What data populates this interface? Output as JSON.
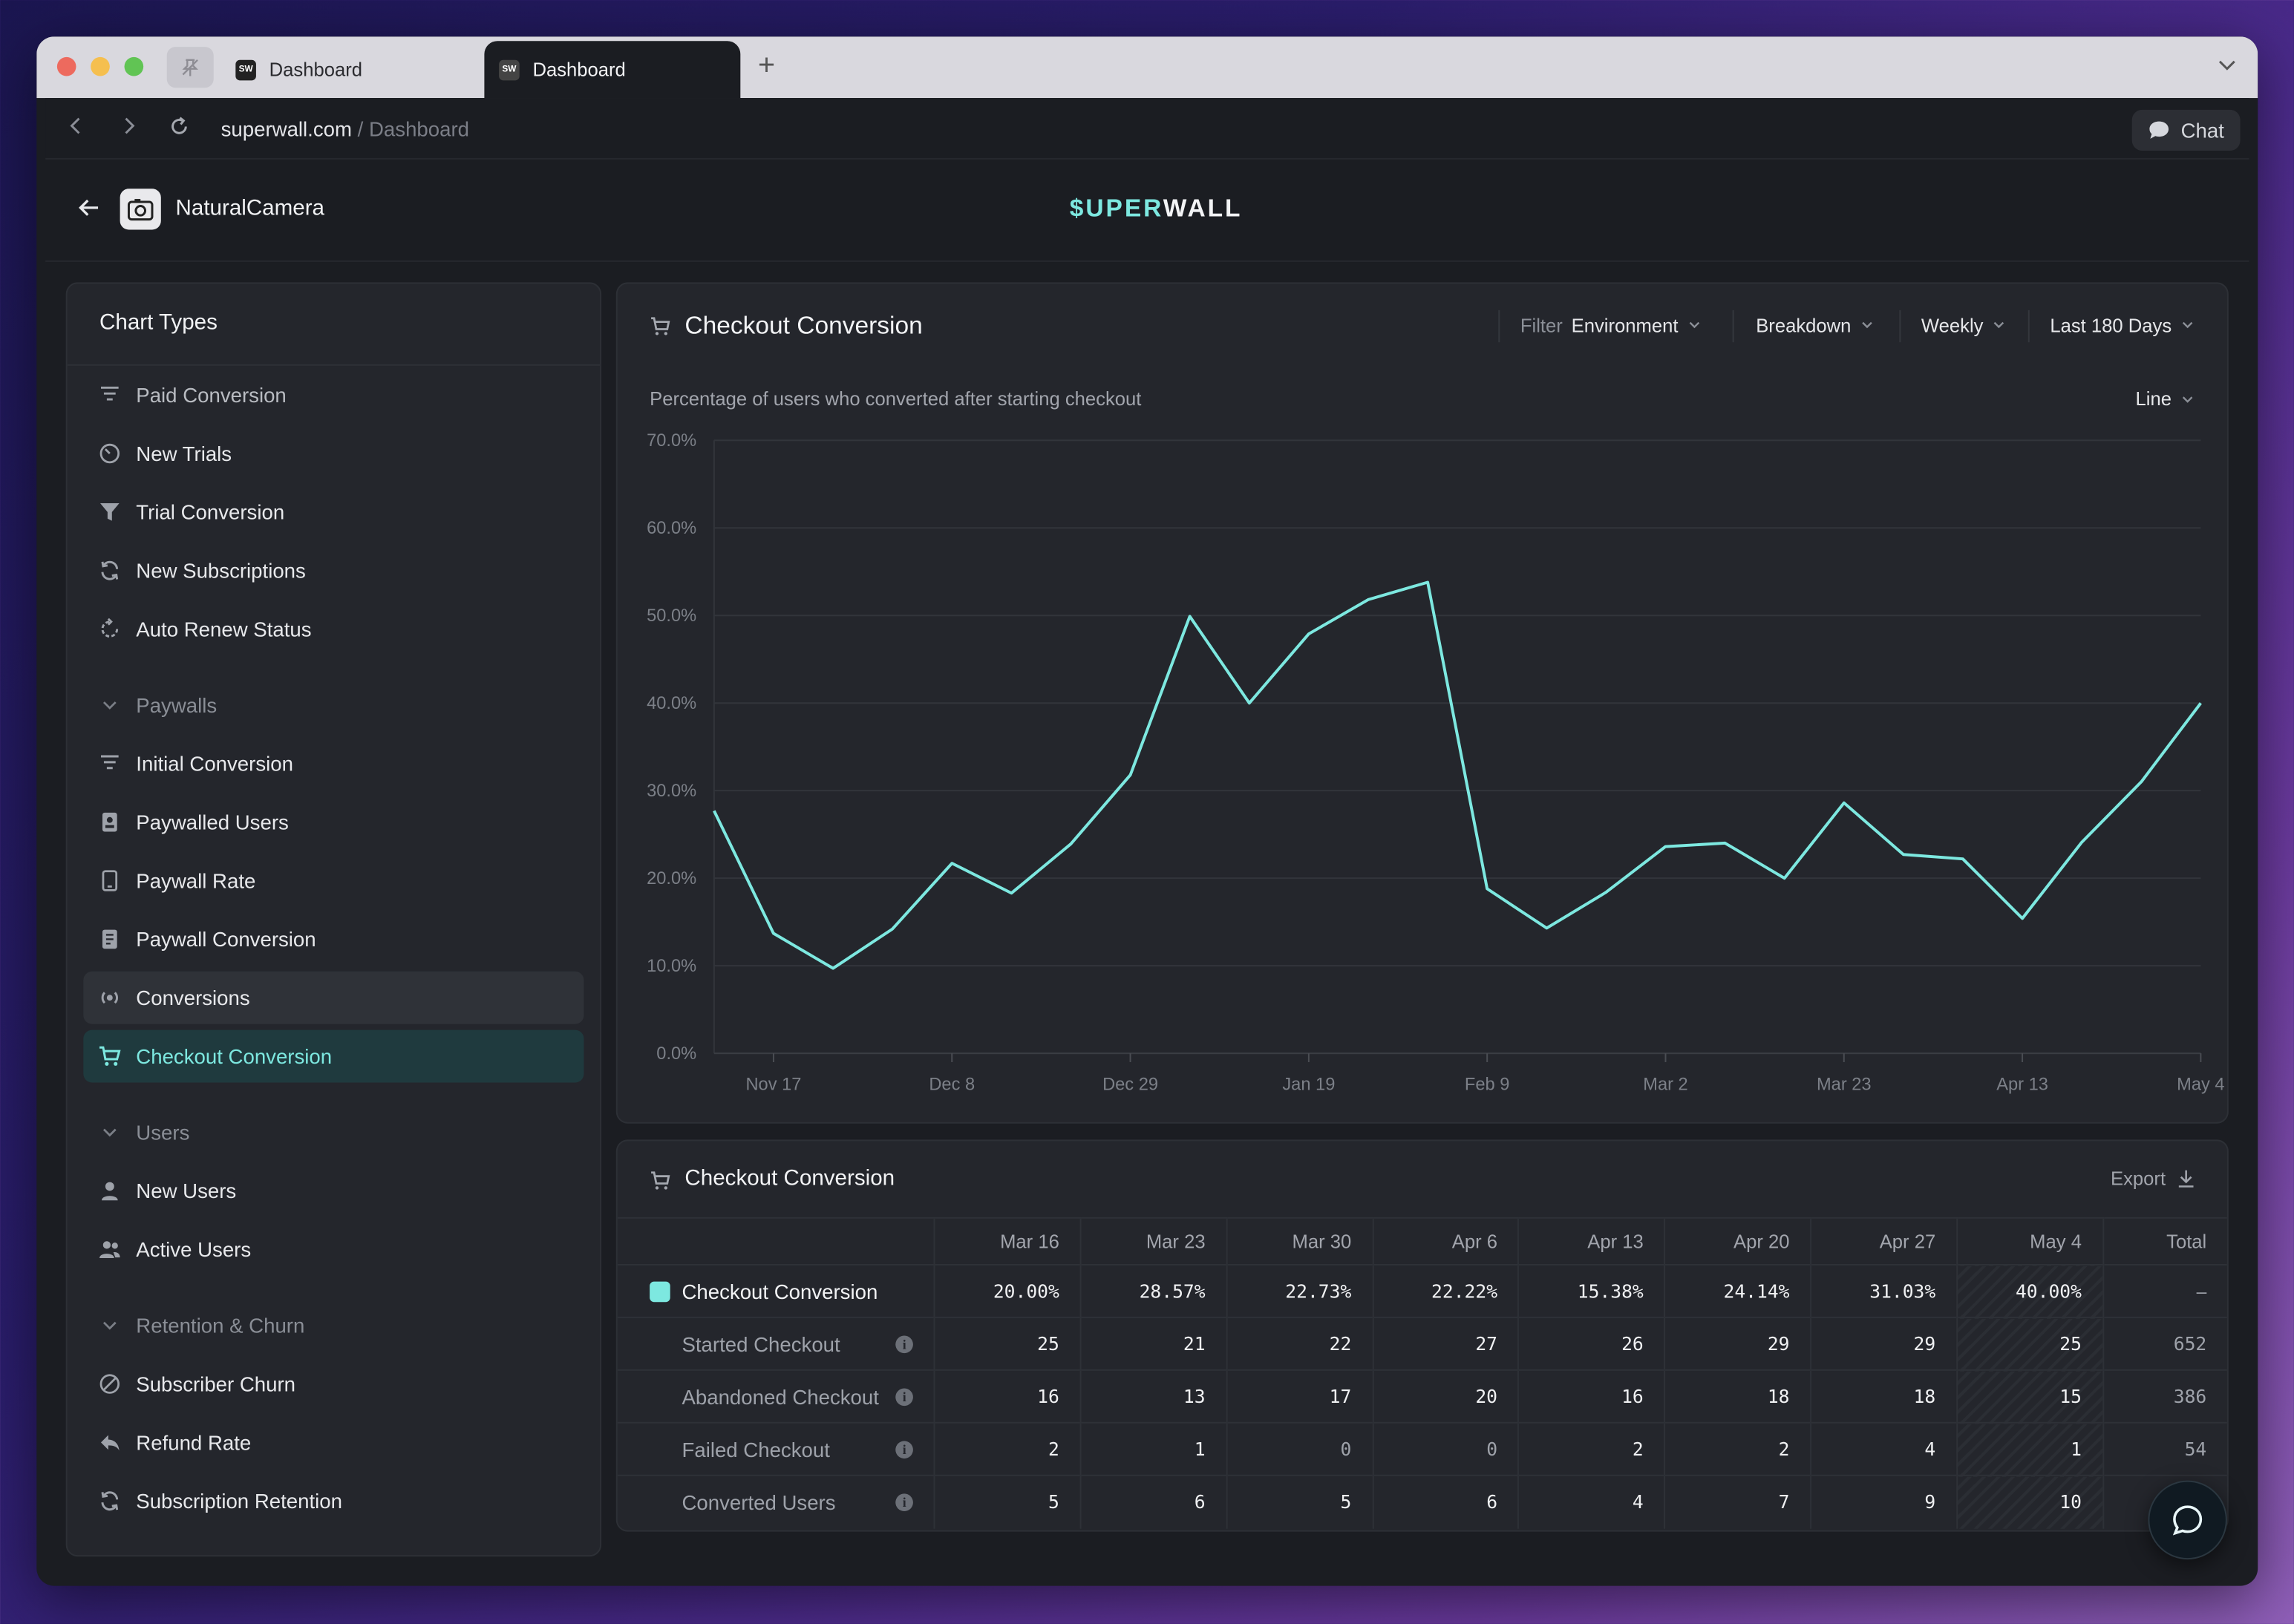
{
  "browser": {
    "tabs": [
      {
        "label": "Dashboard",
        "favicon": "SW"
      },
      {
        "label": "Dashboard",
        "favicon": "SW"
      }
    ],
    "url_host": "superwall.com",
    "url_path": "/ Dashboard",
    "chat_label": "Chat"
  },
  "header": {
    "app_name": "NaturalCamera",
    "brand_a": "$UPER",
    "brand_b": "WALL"
  },
  "sidebar": {
    "title": "Chart Types",
    "items": [
      {
        "label": "Paid Conversion",
        "icon": "filter-lines-icon",
        "kind": "faded"
      },
      {
        "label": "New Trials",
        "icon": "timer-icon",
        "kind": "item"
      },
      {
        "label": "Trial Conversion",
        "icon": "funnel-icon",
        "kind": "item"
      },
      {
        "label": "New Subscriptions",
        "icon": "refresh-icon",
        "kind": "item"
      },
      {
        "label": "Auto Renew Status",
        "icon": "renew-icon",
        "kind": "item"
      },
      {
        "label": "Paywalls",
        "icon": "chevron-down-icon",
        "kind": "section"
      },
      {
        "label": "Initial Conversion",
        "icon": "filter-lines-icon",
        "kind": "item"
      },
      {
        "label": "Paywalled Users",
        "icon": "badge-icon",
        "kind": "item"
      },
      {
        "label": "Paywall Rate",
        "icon": "tablet-icon",
        "kind": "item"
      },
      {
        "label": "Paywall Conversion",
        "icon": "document-icon",
        "kind": "item"
      },
      {
        "label": "Conversions",
        "icon": "broadcast-icon",
        "kind": "hover"
      },
      {
        "label": "Checkout Conversion",
        "icon": "cart-icon",
        "kind": "active"
      },
      {
        "label": "Users",
        "icon": "chevron-down-icon",
        "kind": "section"
      },
      {
        "label": "New Users",
        "icon": "user-icon",
        "kind": "item"
      },
      {
        "label": "Active Users",
        "icon": "users-icon",
        "kind": "item"
      },
      {
        "label": "Retention & Churn",
        "icon": "chevron-down-icon",
        "kind": "section"
      },
      {
        "label": "Subscriber Churn",
        "icon": "slash-circle-icon",
        "kind": "item"
      },
      {
        "label": "Refund Rate",
        "icon": "reply-icon",
        "kind": "item"
      },
      {
        "label": "Subscription Retention",
        "icon": "refresh-icon",
        "kind": "item"
      }
    ]
  },
  "chart_panel": {
    "title": "Checkout Conversion",
    "filter_label": "Filter",
    "filter_value": "Environment",
    "breakdown": "Breakdown",
    "interval": "Weekly",
    "range": "Last 180 Days",
    "subtitle": "Percentage of users who converted after starting checkout",
    "chart_type_select": "Line"
  },
  "chart_data": {
    "type": "line",
    "x_ticks": [
      "Nov 17",
      "Dec 8",
      "Dec 29",
      "Jan 19",
      "Feb 9",
      "Mar 2",
      "Mar 23",
      "Apr 13",
      "May 4"
    ],
    "y_ticks": [
      "0.0%",
      "10.0%",
      "20.0%",
      "30.0%",
      "40.0%",
      "50.0%",
      "60.0%",
      "70.0%"
    ],
    "ylim": [
      0,
      70
    ],
    "grid": true,
    "line_color": "#7de8e0",
    "series": [
      {
        "values": [
          27.7,
          13.7,
          9.7,
          14.2,
          21.7,
          18.3,
          23.9,
          31.8,
          49.9,
          40.0,
          47.9,
          51.8,
          53.8,
          18.8,
          14.3,
          18.4,
          23.6,
          24.0,
          20.0,
          28.6,
          22.7,
          22.2,
          15.4,
          24.1,
          31.0,
          40.0
        ]
      }
    ]
  },
  "table_panel": {
    "title": "Checkout Conversion",
    "export_label": "Export",
    "columns": [
      "Mar 16",
      "Mar 23",
      "Mar 30",
      "Apr 6",
      "Apr 13",
      "Apr 20",
      "Apr 27",
      "May 4",
      "Total"
    ],
    "rows": [
      {
        "label": "Checkout Conversion",
        "main": true,
        "values": [
          "20.00%",
          "28.57%",
          "22.73%",
          "22.22%",
          "15.38%",
          "24.14%",
          "31.03%",
          "40.00%"
        ],
        "total": "–"
      },
      {
        "label": "Started Checkout",
        "main": false,
        "values": [
          "25",
          "21",
          "22",
          "27",
          "26",
          "29",
          "29",
          "25"
        ],
        "total": "652"
      },
      {
        "label": "Abandoned Checkout",
        "main": false,
        "values": [
          "16",
          "13",
          "17",
          "20",
          "16",
          "18",
          "18",
          "15"
        ],
        "total": "386"
      },
      {
        "label": "Failed Checkout",
        "main": false,
        "values": [
          "2",
          "1",
          "0",
          "0",
          "2",
          "2",
          "4",
          "1"
        ],
        "total": "54"
      },
      {
        "label": "Converted Users",
        "main": false,
        "values": [
          "5",
          "6",
          "5",
          "6",
          "4",
          "7",
          "9",
          "10"
        ],
        "total": ""
      }
    ]
  }
}
